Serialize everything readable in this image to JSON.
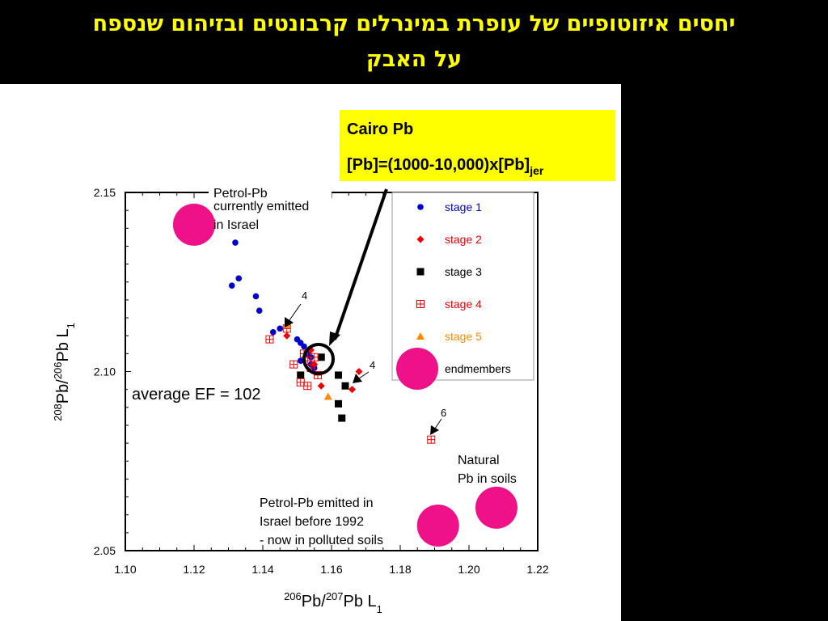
{
  "title": {
    "line1": "יחסים איזוטופיים של עופרת במינרלים קרבונטים ובזיהום שנספח",
    "line2": "על האבק"
  },
  "callout": {
    "line1": "Cairo Pb",
    "line2": "[Pb]=(1000-10,000)x[Pb]",
    "line2_sub": "jer",
    "color": "#ffff00"
  },
  "annotations": {
    "petrol_current": [
      "Petrol-Pb",
      "currently emitted",
      "in Israel"
    ],
    "average_ef": "average EF = 102",
    "natural": [
      "Natural",
      "Pb in soils"
    ],
    "petrol_before": [
      "Petrol-Pb emitted in",
      "Israel before 1992",
      "- now in polluted soils"
    ],
    "label_4a": "4",
    "label_4b": "4",
    "label_6": "6"
  },
  "chart_data": {
    "type": "scatter",
    "xlabel": "206Pb/207Pb L1",
    "ylabel": "208Pb/206Pb L1",
    "xlim": [
      1.1,
      1.22
    ],
    "ylim": [
      2.05,
      2.15
    ],
    "x_ticks": [
      "1.10",
      "1.12",
      "1.14",
      "1.16",
      "1.18",
      "1.20",
      "1.22"
    ],
    "y_ticks": [
      "2.05",
      "2.10",
      "2.15"
    ],
    "legend_position": "top-right",
    "series": [
      {
        "name": "stage 1",
        "color": "#0000cc",
        "marker": "circle",
        "points": [
          [
            1.132,
            2.136
          ],
          [
            1.131,
            2.124
          ],
          [
            1.133,
            2.126
          ],
          [
            1.138,
            2.121
          ],
          [
            1.139,
            2.117
          ],
          [
            1.143,
            2.111
          ],
          [
            1.145,
            2.112
          ],
          [
            1.15,
            2.109
          ],
          [
            1.151,
            2.108
          ],
          [
            1.151,
            2.103
          ],
          [
            1.152,
            2.107
          ],
          [
            1.153,
            2.105
          ],
          [
            1.154,
            2.104
          ],
          [
            1.154,
            2.102
          ],
          [
            1.155,
            2.101
          ]
        ]
      },
      {
        "name": "stage 2",
        "color": "#ee0000",
        "marker": "diamond",
        "points": [
          [
            1.147,
            2.11
          ],
          [
            1.154,
            2.106
          ],
          [
            1.155,
            2.102
          ],
          [
            1.157,
            2.096
          ],
          [
            1.166,
            2.095
          ],
          [
            1.168,
            2.1
          ],
          [
            1.157,
            2.104
          ]
        ]
      },
      {
        "name": "stage 3",
        "color": "#000000",
        "marker": "square",
        "points": [
          [
            1.157,
            2.104
          ],
          [
            1.151,
            2.099
          ],
          [
            1.162,
            2.099
          ],
          [
            1.164,
            2.096
          ],
          [
            1.162,
            2.091
          ],
          [
            1.163,
            2.087
          ]
        ]
      },
      {
        "name": "stage 4",
        "color": "#ee0000",
        "marker": "crossed-square",
        "points": [
          [
            1.147,
            2.112
          ],
          [
            1.142,
            2.109
          ],
          [
            1.152,
            2.105
          ],
          [
            1.153,
            2.103
          ],
          [
            1.149,
            2.102
          ],
          [
            1.155,
            2.104
          ],
          [
            1.154,
            2.101
          ],
          [
            1.156,
            2.099
          ],
          [
            1.151,
            2.097
          ],
          [
            1.153,
            2.096
          ],
          [
            1.189,
            2.081
          ]
        ]
      },
      {
        "name": "stage 5",
        "color": "#ff8800",
        "marker": "triangle",
        "points": [
          [
            1.147,
            2.113
          ],
          [
            1.159,
            2.093
          ]
        ]
      },
      {
        "name": "endmembers",
        "color": "#ee1188",
        "marker": "large-circle",
        "points": [
          [
            1.12,
            2.141
          ],
          [
            1.191,
            2.057
          ],
          [
            1.208,
            2.062
          ]
        ]
      }
    ]
  }
}
